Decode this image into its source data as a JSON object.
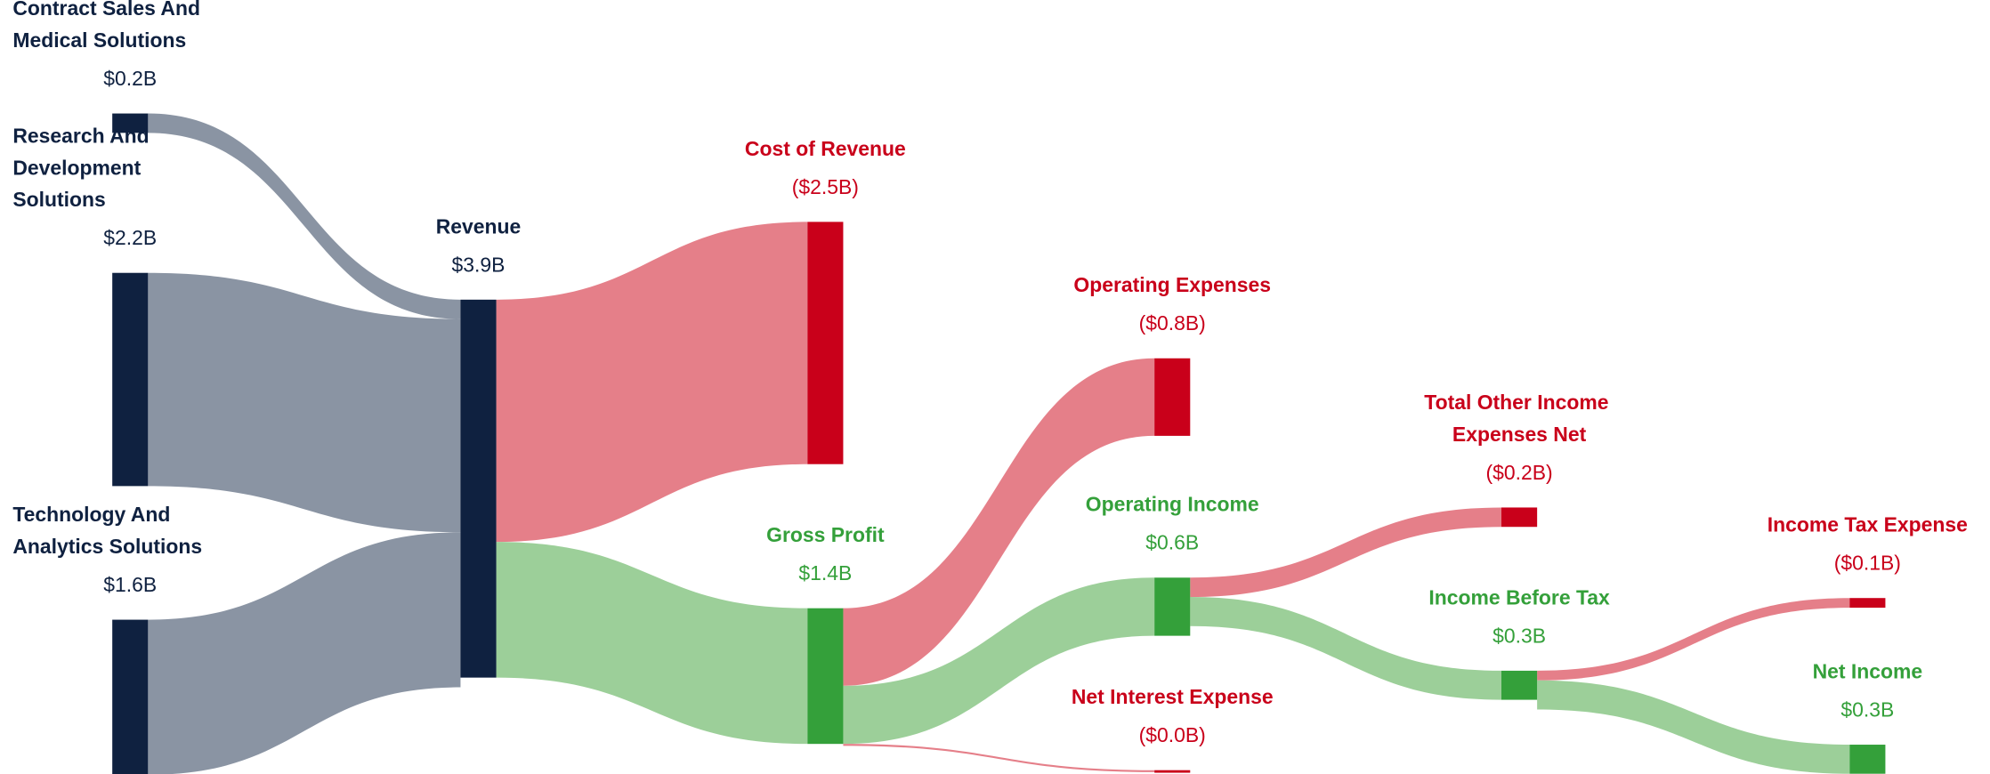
{
  "chart_data": {
    "type": "sankey",
    "nodes": [
      {
        "label": "Contract Sales And Medical Solutions",
        "value": 0.2,
        "value_label": "$0.2B",
        "color": "#0f2140"
      },
      {
        "label": "Research And Development Solutions",
        "value": 2.2,
        "value_label": "$2.2B",
        "color": "#0f2140"
      },
      {
        "label": "Technology And Analytics Solutions",
        "value": 1.6,
        "value_label": "$1.6B",
        "color": "#0f2140"
      },
      {
        "label": "Revenue",
        "value": 3.9,
        "value_label": "$3.9B",
        "color": "#0f2140"
      },
      {
        "label": "Cost of Revenue",
        "value": 2.5,
        "value_label": "($2.5B)",
        "color": "#c9001a"
      },
      {
        "label": "Gross Profit",
        "value": 1.4,
        "value_label": "$1.4B",
        "color": "#34a03a"
      },
      {
        "label": "Operating Expenses",
        "value": 0.8,
        "value_label": "($0.8B)",
        "color": "#c9001a"
      },
      {
        "label": "Operating Income",
        "value": 0.6,
        "value_label": "$0.6B",
        "color": "#34a03a"
      },
      {
        "label": "Net Interest Expense",
        "value": 0.0,
        "value_label": "($0.0B)",
        "color": "#c9001a"
      },
      {
        "label": "Total Other Income Expenses Net",
        "value": 0.2,
        "value_label": "($0.2B)",
        "color": "#c9001a"
      },
      {
        "label": "Income Before Tax",
        "value": 0.3,
        "value_label": "$0.3B",
        "color": "#34a03a"
      },
      {
        "label": "Income Tax Expense",
        "value": 0.1,
        "value_label": "($0.1B)",
        "color": "#c9001a"
      },
      {
        "label": "Net Income",
        "value": 0.3,
        "value_label": "$0.3B",
        "color": "#34a03a"
      }
    ],
    "links": [
      {
        "source": 0,
        "target": 3,
        "value": 0.2,
        "color": "#8a94a3"
      },
      {
        "source": 1,
        "target": 3,
        "value": 2.2,
        "color": "#8a94a3"
      },
      {
        "source": 2,
        "target": 3,
        "value": 1.6,
        "color": "#8a94a3"
      },
      {
        "source": 3,
        "target": 4,
        "value": 2.5,
        "color": "#e57f89"
      },
      {
        "source": 3,
        "target": 5,
        "value": 1.4,
        "color": "#9ccf99"
      },
      {
        "source": 5,
        "target": 6,
        "value": 0.8,
        "color": "#e57f89"
      },
      {
        "source": 5,
        "target": 7,
        "value": 0.6,
        "color": "#9ccf99"
      },
      {
        "source": 5,
        "target": 8,
        "value": 0.0,
        "color": "#e57f89"
      },
      {
        "source": 7,
        "target": 9,
        "value": 0.2,
        "color": "#e57f89"
      },
      {
        "source": 7,
        "target": 10,
        "value": 0.3,
        "color": "#9ccf99"
      },
      {
        "source": 10,
        "target": 11,
        "value": 0.1,
        "color": "#e57f89"
      },
      {
        "source": 10,
        "target": 12,
        "value": 0.3,
        "color": "#9ccf99"
      }
    ]
  }
}
